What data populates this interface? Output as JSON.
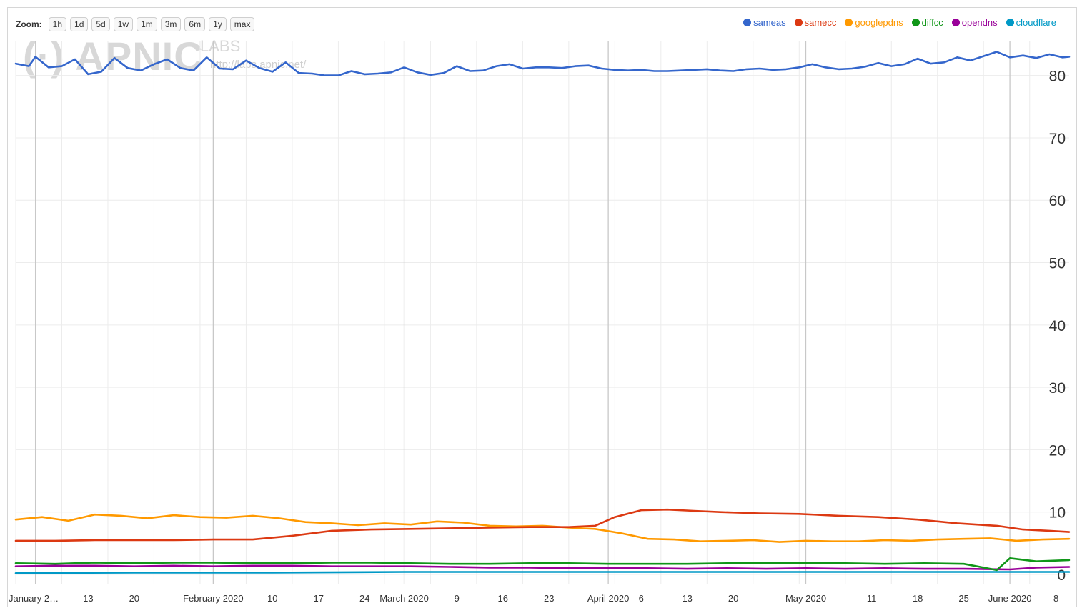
{
  "toolbar": {
    "zoom_label": "Zoom:",
    "zoom_options": [
      "1h",
      "1d",
      "5d",
      "1w",
      "1m",
      "3m",
      "6m",
      "1y",
      "max"
    ]
  },
  "watermark": {
    "logo": "APNIC",
    "labs": "LABS",
    "url": "http://labs.apnic.net/"
  },
  "chart_data": {
    "type": "line",
    "title": "",
    "xlabel": "",
    "ylabel": "",
    "ylim": [
      0,
      85
    ],
    "yticks": [
      0,
      10,
      20,
      30,
      40,
      50,
      60,
      70,
      80
    ],
    "grid": true,
    "legend_position": "top-right",
    "x_start": "2020-01-02",
    "x_end": "2020-06-10",
    "x_tick_labels": [
      {
        "label": "January 2…",
        "date": "2020-01-02"
      },
      {
        "label": "13",
        "date": "2020-01-13"
      },
      {
        "label": "20",
        "date": "2020-01-20"
      },
      {
        "label": "February 2020",
        "date": "2020-02-01"
      },
      {
        "label": "10",
        "date": "2020-02-10"
      },
      {
        "label": "17",
        "date": "2020-02-17"
      },
      {
        "label": "24",
        "date": "2020-02-24"
      },
      {
        "label": "March 2020",
        "date": "2020-03-01"
      },
      {
        "label": "9",
        "date": "2020-03-09"
      },
      {
        "label": "16",
        "date": "2020-03-16"
      },
      {
        "label": "23",
        "date": "2020-03-23"
      },
      {
        "label": "April 2020",
        "date": "2020-04-01"
      },
      {
        "label": "6",
        "date": "2020-04-06"
      },
      {
        "label": "13",
        "date": "2020-04-13"
      },
      {
        "label": "20",
        "date": "2020-04-20"
      },
      {
        "label": "May 2020",
        "date": "2020-05-01"
      },
      {
        "label": "11",
        "date": "2020-05-11"
      },
      {
        "label": "18",
        "date": "2020-05-18"
      },
      {
        "label": "25",
        "date": "2020-05-25"
      },
      {
        "label": "June 2020",
        "date": "2020-06-01"
      },
      {
        "label": "8",
        "date": "2020-06-08"
      }
    ],
    "major_gridline_dates": [
      "2020-01-05",
      "2020-02-01",
      "2020-03-01",
      "2020-04-01",
      "2020-05-01",
      "2020-06-01"
    ],
    "series": [
      {
        "name": "sameas",
        "color": "#3466cc",
        "points": [
          [
            "2020-01-02",
            81.9
          ],
          [
            "2020-01-04",
            81.5
          ],
          [
            "2020-01-05",
            83.0
          ],
          [
            "2020-01-07",
            81.3
          ],
          [
            "2020-01-09",
            81.5
          ],
          [
            "2020-01-11",
            82.6
          ],
          [
            "2020-01-13",
            80.2
          ],
          [
            "2020-01-15",
            80.6
          ],
          [
            "2020-01-17",
            82.8
          ],
          [
            "2020-01-19",
            81.2
          ],
          [
            "2020-01-21",
            80.8
          ],
          [
            "2020-01-23",
            81.8
          ],
          [
            "2020-01-25",
            82.6
          ],
          [
            "2020-01-27",
            81.2
          ],
          [
            "2020-01-29",
            80.8
          ],
          [
            "2020-01-31",
            82.9
          ],
          [
            "2020-02-02",
            81.1
          ],
          [
            "2020-02-04",
            81.0
          ],
          [
            "2020-02-06",
            82.4
          ],
          [
            "2020-02-08",
            81.2
          ],
          [
            "2020-02-10",
            80.6
          ],
          [
            "2020-02-12",
            82.1
          ],
          [
            "2020-02-14",
            80.4
          ],
          [
            "2020-02-16",
            80.3
          ],
          [
            "2020-02-18",
            80.0
          ],
          [
            "2020-02-20",
            80.0
          ],
          [
            "2020-02-22",
            80.7
          ],
          [
            "2020-02-24",
            80.2
          ],
          [
            "2020-02-26",
            80.3
          ],
          [
            "2020-02-28",
            80.5
          ],
          [
            "2020-03-01",
            81.3
          ],
          [
            "2020-03-03",
            80.5
          ],
          [
            "2020-03-05",
            80.1
          ],
          [
            "2020-03-07",
            80.4
          ],
          [
            "2020-03-09",
            81.5
          ],
          [
            "2020-03-11",
            80.7
          ],
          [
            "2020-03-13",
            80.8
          ],
          [
            "2020-03-15",
            81.5
          ],
          [
            "2020-03-17",
            81.8
          ],
          [
            "2020-03-19",
            81.1
          ],
          [
            "2020-03-21",
            81.3
          ],
          [
            "2020-03-23",
            81.3
          ],
          [
            "2020-03-25",
            81.2
          ],
          [
            "2020-03-27",
            81.5
          ],
          [
            "2020-03-29",
            81.6
          ],
          [
            "2020-03-31",
            81.1
          ],
          [
            "2020-04-02",
            80.9
          ],
          [
            "2020-04-04",
            80.8
          ],
          [
            "2020-04-06",
            80.9
          ],
          [
            "2020-04-08",
            80.7
          ],
          [
            "2020-04-10",
            80.7
          ],
          [
            "2020-04-12",
            80.8
          ],
          [
            "2020-04-14",
            80.9
          ],
          [
            "2020-04-16",
            81.0
          ],
          [
            "2020-04-18",
            80.8
          ],
          [
            "2020-04-20",
            80.7
          ],
          [
            "2020-04-22",
            81.0
          ],
          [
            "2020-04-24",
            81.1
          ],
          [
            "2020-04-26",
            80.9
          ],
          [
            "2020-04-28",
            81.0
          ],
          [
            "2020-04-30",
            81.3
          ],
          [
            "2020-05-02",
            81.8
          ],
          [
            "2020-05-04",
            81.3
          ],
          [
            "2020-05-06",
            81.0
          ],
          [
            "2020-05-08",
            81.1
          ],
          [
            "2020-05-10",
            81.4
          ],
          [
            "2020-05-12",
            82.0
          ],
          [
            "2020-05-14",
            81.5
          ],
          [
            "2020-05-16",
            81.8
          ],
          [
            "2020-05-18",
            82.7
          ],
          [
            "2020-05-20",
            81.9
          ],
          [
            "2020-05-22",
            82.1
          ],
          [
            "2020-05-24",
            82.9
          ],
          [
            "2020-05-26",
            82.4
          ],
          [
            "2020-05-28",
            83.1
          ],
          [
            "2020-05-30",
            83.8
          ],
          [
            "2020-06-01",
            82.9
          ],
          [
            "2020-06-03",
            83.2
          ],
          [
            "2020-06-05",
            82.8
          ],
          [
            "2020-06-07",
            83.4
          ],
          [
            "2020-06-09",
            82.9
          ],
          [
            "2020-06-10",
            83.0
          ]
        ]
      },
      {
        "name": "samecc",
        "color": "#dc3912",
        "points": [
          [
            "2020-01-02",
            5.4
          ],
          [
            "2020-01-08",
            5.4
          ],
          [
            "2020-01-14",
            5.5
          ],
          [
            "2020-01-20",
            5.5
          ],
          [
            "2020-01-26",
            5.5
          ],
          [
            "2020-02-01",
            5.6
          ],
          [
            "2020-02-07",
            5.6
          ],
          [
            "2020-02-13",
            6.2
          ],
          [
            "2020-02-19",
            7.0
          ],
          [
            "2020-02-25",
            7.2
          ],
          [
            "2020-03-02",
            7.3
          ],
          [
            "2020-03-08",
            7.4
          ],
          [
            "2020-03-14",
            7.5
          ],
          [
            "2020-03-20",
            7.6
          ],
          [
            "2020-03-26",
            7.6
          ],
          [
            "2020-03-30",
            7.8
          ],
          [
            "2020-04-02",
            9.2
          ],
          [
            "2020-04-06",
            10.3
          ],
          [
            "2020-04-10",
            10.4
          ],
          [
            "2020-04-14",
            10.2
          ],
          [
            "2020-04-18",
            10.0
          ],
          [
            "2020-04-24",
            9.8
          ],
          [
            "2020-04-30",
            9.7
          ],
          [
            "2020-05-06",
            9.4
          ],
          [
            "2020-05-12",
            9.2
          ],
          [
            "2020-05-18",
            8.8
          ],
          [
            "2020-05-24",
            8.2
          ],
          [
            "2020-05-30",
            7.8
          ],
          [
            "2020-06-03",
            7.2
          ],
          [
            "2020-06-07",
            7.0
          ],
          [
            "2020-06-10",
            6.8
          ]
        ]
      },
      {
        "name": "googlepdns",
        "color": "#ff9900",
        "points": [
          [
            "2020-01-02",
            8.8
          ],
          [
            "2020-01-06",
            9.2
          ],
          [
            "2020-01-10",
            8.6
          ],
          [
            "2020-01-14",
            9.6
          ],
          [
            "2020-01-18",
            9.4
          ],
          [
            "2020-01-22",
            9.0
          ],
          [
            "2020-01-26",
            9.5
          ],
          [
            "2020-01-30",
            9.2
          ],
          [
            "2020-02-03",
            9.1
          ],
          [
            "2020-02-07",
            9.4
          ],
          [
            "2020-02-11",
            9.0
          ],
          [
            "2020-02-15",
            8.4
          ],
          [
            "2020-02-19",
            8.2
          ],
          [
            "2020-02-23",
            7.9
          ],
          [
            "2020-02-27",
            8.2
          ],
          [
            "2020-03-02",
            8.0
          ],
          [
            "2020-03-06",
            8.5
          ],
          [
            "2020-03-10",
            8.3
          ],
          [
            "2020-03-14",
            7.8
          ],
          [
            "2020-03-18",
            7.7
          ],
          [
            "2020-03-22",
            7.8
          ],
          [
            "2020-03-26",
            7.5
          ],
          [
            "2020-03-30",
            7.3
          ],
          [
            "2020-04-03",
            6.6
          ],
          [
            "2020-04-07",
            5.7
          ],
          [
            "2020-04-11",
            5.6
          ],
          [
            "2020-04-15",
            5.3
          ],
          [
            "2020-04-19",
            5.4
          ],
          [
            "2020-04-23",
            5.5
          ],
          [
            "2020-04-27",
            5.2
          ],
          [
            "2020-05-01",
            5.4
          ],
          [
            "2020-05-05",
            5.3
          ],
          [
            "2020-05-09",
            5.3
          ],
          [
            "2020-05-13",
            5.5
          ],
          [
            "2020-05-17",
            5.4
          ],
          [
            "2020-05-21",
            5.6
          ],
          [
            "2020-05-25",
            5.7
          ],
          [
            "2020-05-29",
            5.8
          ],
          [
            "2020-06-02",
            5.4
          ],
          [
            "2020-06-06",
            5.6
          ],
          [
            "2020-06-10",
            5.7
          ]
        ]
      },
      {
        "name": "diffcc",
        "color": "#109618",
        "points": [
          [
            "2020-01-02",
            1.8
          ],
          [
            "2020-01-08",
            1.7
          ],
          [
            "2020-01-14",
            1.9
          ],
          [
            "2020-01-20",
            1.8
          ],
          [
            "2020-01-26",
            1.9
          ],
          [
            "2020-02-01",
            1.9
          ],
          [
            "2020-02-07",
            1.8
          ],
          [
            "2020-02-13",
            1.8
          ],
          [
            "2020-02-19",
            1.9
          ],
          [
            "2020-02-25",
            1.9
          ],
          [
            "2020-03-02",
            1.8
          ],
          [
            "2020-03-08",
            1.7
          ],
          [
            "2020-03-14",
            1.7
          ],
          [
            "2020-03-20",
            1.8
          ],
          [
            "2020-03-26",
            1.8
          ],
          [
            "2020-04-01",
            1.7
          ],
          [
            "2020-04-07",
            1.7
          ],
          [
            "2020-04-13",
            1.7
          ],
          [
            "2020-04-19",
            1.8
          ],
          [
            "2020-04-25",
            1.8
          ],
          [
            "2020-05-01",
            1.8
          ],
          [
            "2020-05-07",
            1.8
          ],
          [
            "2020-05-13",
            1.7
          ],
          [
            "2020-05-19",
            1.8
          ],
          [
            "2020-05-25",
            1.7
          ],
          [
            "2020-05-30",
            0.7
          ],
          [
            "2020-06-01",
            2.6
          ],
          [
            "2020-06-05",
            2.1
          ],
          [
            "2020-06-10",
            2.3
          ]
        ]
      },
      {
        "name": "opendns",
        "color": "#990099",
        "points": [
          [
            "2020-01-02",
            1.3
          ],
          [
            "2020-01-08",
            1.4
          ],
          [
            "2020-01-14",
            1.4
          ],
          [
            "2020-01-20",
            1.3
          ],
          [
            "2020-01-26",
            1.4
          ],
          [
            "2020-02-01",
            1.3
          ],
          [
            "2020-02-07",
            1.4
          ],
          [
            "2020-02-13",
            1.4
          ],
          [
            "2020-02-19",
            1.3
          ],
          [
            "2020-02-25",
            1.3
          ],
          [
            "2020-03-02",
            1.3
          ],
          [
            "2020-03-08",
            1.2
          ],
          [
            "2020-03-14",
            1.1
          ],
          [
            "2020-03-20",
            1.1
          ],
          [
            "2020-03-26",
            1.0
          ],
          [
            "2020-04-01",
            1.0
          ],
          [
            "2020-04-07",
            1.0
          ],
          [
            "2020-04-13",
            0.9
          ],
          [
            "2020-04-19",
            1.0
          ],
          [
            "2020-04-25",
            0.9
          ],
          [
            "2020-05-01",
            1.0
          ],
          [
            "2020-05-07",
            0.9
          ],
          [
            "2020-05-13",
            1.0
          ],
          [
            "2020-05-19",
            0.9
          ],
          [
            "2020-05-25",
            0.9
          ],
          [
            "2020-06-01",
            0.8
          ],
          [
            "2020-06-05",
            1.1
          ],
          [
            "2020-06-10",
            1.2
          ]
        ]
      },
      {
        "name": "cloudflare",
        "color": "#0099c6",
        "points": [
          [
            "2020-01-02",
            0.2
          ],
          [
            "2020-01-20",
            0.3
          ],
          [
            "2020-02-10",
            0.3
          ],
          [
            "2020-03-01",
            0.4
          ],
          [
            "2020-03-20",
            0.4
          ],
          [
            "2020-04-10",
            0.4
          ],
          [
            "2020-05-01",
            0.4
          ],
          [
            "2020-05-20",
            0.4
          ],
          [
            "2020-06-10",
            0.4
          ]
        ]
      }
    ]
  }
}
